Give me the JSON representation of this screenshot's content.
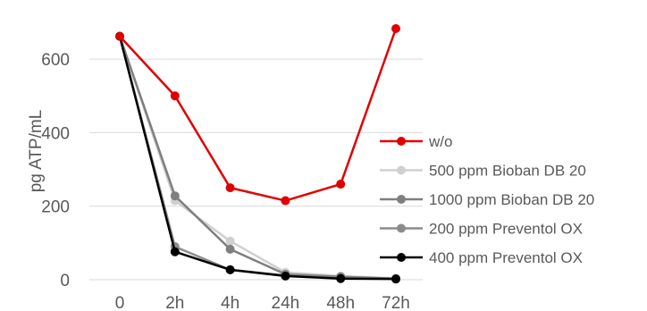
{
  "chart_data": {
    "type": "line",
    "ylabel": "pg ATP/mL",
    "xlabel": "",
    "categories": [
      "0",
      "2h",
      "4h",
      "24h",
      "48h",
      "72h"
    ],
    "ylim": [
      0,
      700
    ],
    "yticks": [
      0,
      200,
      400,
      600
    ],
    "grid": true,
    "legend_position": "right",
    "series": [
      {
        "name": "w/o",
        "color": "#e00000",
        "values": [
          662,
          500,
          250,
          215,
          260,
          683
        ]
      },
      {
        "name": "500 ppm Bioban DB 20",
        "color": "#d0d0d0",
        "values": [
          662,
          215,
          105,
          20,
          10,
          4
        ]
      },
      {
        "name": "1000 ppm Bioban DB 20",
        "color": "#7f7f7f",
        "values": [
          662,
          228,
          83,
          15,
          8,
          3
        ]
      },
      {
        "name": "200 ppm Preventol OX",
        "color": "#8c8c8c",
        "values": [
          662,
          90,
          27,
          12,
          4,
          2
        ]
      },
      {
        "name": "400 ppm Preventol OX",
        "color": "#000000",
        "values": [
          662,
          76,
          27,
          10,
          3,
          2
        ]
      }
    ]
  }
}
